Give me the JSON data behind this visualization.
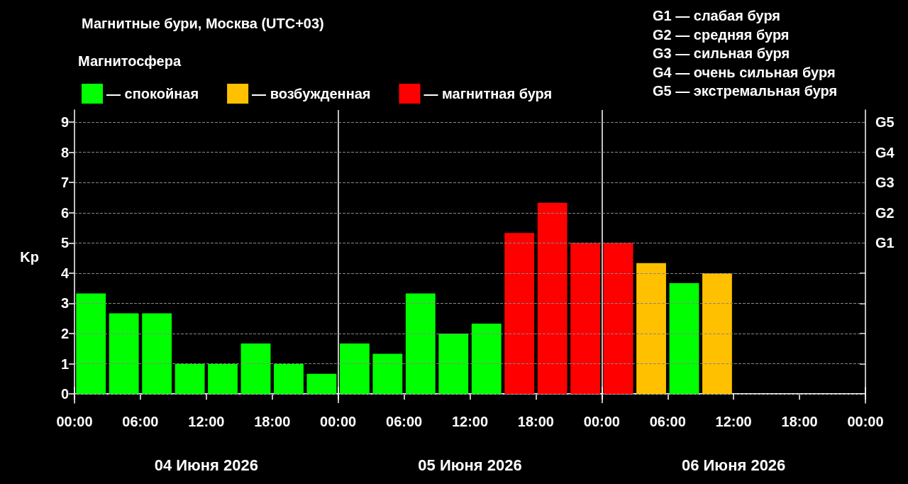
{
  "chart_data": {
    "type": "bar",
    "title": "Магнитные бури, Москва (UTC+03)",
    "legend_title": "Магнитосфера",
    "ylabel": "Kp",
    "xlim": [
      "2026-06-04T00:00",
      "2026-06-07T00:00"
    ],
    "xticks": [
      {
        "value": "2026-06-04T00:00",
        "label": "00:00"
      },
      {
        "value": "2026-06-04T06:00",
        "label": "06:00"
      },
      {
        "value": "2026-06-04T12:00",
        "label": "12:00"
      },
      {
        "value": "2026-06-04T18:00",
        "label": "18:00"
      },
      {
        "value": "2026-06-05T00:00",
        "label": "00:00"
      },
      {
        "value": "2026-06-05T06:00",
        "label": "06:00"
      },
      {
        "value": "2026-06-05T12:00",
        "label": "12:00"
      },
      {
        "value": "2026-06-05T18:00",
        "label": "18:00"
      },
      {
        "value": "2026-06-06T00:00",
        "label": "00:00"
      },
      {
        "value": "2026-06-06T06:00",
        "label": "06:00"
      },
      {
        "value": "2026-06-06T12:00",
        "label": "12:00"
      },
      {
        "value": "2026-06-06T18:00",
        "label": "18:00"
      },
      {
        "value": "2026-06-07T00:00",
        "label": "00:00"
      }
    ],
    "x2lim": [
      "2026-06-04T00:00",
      "2026-06-07T00:00"
    ],
    "x2ticks": [
      {
        "value": "2026-06-04T12:00",
        "label": "04 Июня 2026"
      },
      {
        "value": "2026-06-05T12:00",
        "label": "05 Июня 2026"
      },
      {
        "value": "2026-06-06T12:00",
        "label": "06 Июня 2026"
      }
    ],
    "ylim": [
      -0.3,
      9.4
    ],
    "yticks": [
      0,
      1,
      2,
      3,
      4,
      5,
      6,
      7,
      8,
      9
    ],
    "series": [
      {
        "name": "— спокойная",
        "color": "#00ff00",
        "x": [
          "2026-06-04T01:30",
          "2026-06-04T04:30",
          "2026-06-04T07:30",
          "2026-06-04T10:30",
          "2026-06-04T13:30",
          "2026-06-04T16:30",
          "2026-06-04T19:30",
          "2026-06-04T22:30",
          "2026-06-05T01:30",
          "2026-06-05T04:30",
          "2026-06-05T07:30",
          "2026-06-05T10:30",
          "2026-06-05T13:30",
          "2026-06-06T07:30"
        ],
        "values": [
          3.33,
          2.67,
          2.67,
          1,
          1,
          1.67,
          1,
          0.67,
          1.67,
          1.33,
          3.33,
          2,
          2.33,
          3.67
        ]
      },
      {
        "name": "— возбужденная",
        "color": "#ffc000",
        "x": [
          "2026-06-06T04:30",
          "2026-06-06T10:30"
        ],
        "values": [
          4.33,
          4
        ]
      },
      {
        "name": "— магнитная буря",
        "color": "#ff0000",
        "x": [
          "2026-06-05T16:30",
          "2026-06-05T19:30",
          "2026-06-05T22:30",
          "2026-06-06T01:30"
        ],
        "values": [
          5.33,
          6.33,
          5,
          5
        ]
      }
    ],
    "ref_lines": [
      {
        "axis": "x",
        "value": "2026-06-05T00:00",
        "label": null,
        "color": "#ffffff"
      },
      {
        "axis": "x",
        "value": "2026-06-06T00:00",
        "label": null,
        "color": "#ffffff"
      },
      {
        "axis": "y",
        "value": 0,
        "label": null,
        "color": "#888888",
        "line_style": "dashed"
      },
      {
        "axis": "y",
        "value": 1,
        "label": null,
        "color": "#888888",
        "line_style": "dashed"
      },
      {
        "axis": "y",
        "value": 2,
        "label": null,
        "color": "#888888",
        "line_style": "dashed"
      },
      {
        "axis": "y",
        "value": 3,
        "label": null,
        "color": "#888888",
        "line_style": "dashed"
      },
      {
        "axis": "y",
        "value": 4,
        "label": null,
        "color": "#888888",
        "line_style": "dashed"
      },
      {
        "axis": "y",
        "value": 5,
        "label": "G1",
        "color": "#888888",
        "line_style": "dashed"
      },
      {
        "axis": "y",
        "value": 6,
        "label": "G2",
        "color": "#888888",
        "line_style": "dashed"
      },
      {
        "axis": "y",
        "value": 7,
        "label": "G3",
        "color": "#888888",
        "line_style": "dashed"
      },
      {
        "axis": "y",
        "value": 8,
        "label": "G4",
        "color": "#888888",
        "line_style": "dashed"
      },
      {
        "axis": "y",
        "value": 9,
        "label": "G5",
        "color": "#888888",
        "line_style": "dashed"
      }
    ],
    "annotations": [
      "G1 — слабая буря",
      "G2 — средняя буря",
      "G3 — сильная буря",
      "G4 — очень сильная буря",
      "G5 — экстремальная буря"
    ],
    "legend": "top"
  }
}
